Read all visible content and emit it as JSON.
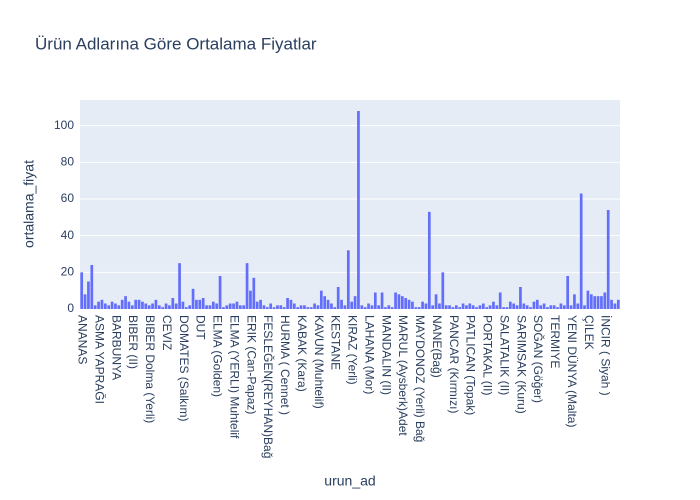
{
  "chart_data": {
    "type": "bar",
    "title": "Ürün Adlarına Göre Ortalama Fiyatlar",
    "x_label": "urun_ad",
    "y_label": "ortalama_fiyat",
    "color": "#636efa",
    "grid": true,
    "ylim": [
      0,
      114
    ],
    "yticks": [
      0,
      20,
      40,
      60,
      80,
      100
    ],
    "categories": [
      "ANANAS",
      null,
      null,
      null,
      null,
      "ASMA YAPRAĞI",
      null,
      null,
      null,
      null,
      "BARBUNYA",
      null,
      null,
      null,
      null,
      "BIBER (II)",
      null,
      null,
      null,
      null,
      "BIBER Dolma (Yerli)",
      null,
      null,
      null,
      null,
      "CEVIZ",
      null,
      null,
      null,
      null,
      "DOMATES (Salkım)",
      null,
      null,
      null,
      null,
      "DUT",
      null,
      null,
      null,
      null,
      "ELMA (Golden)",
      null,
      null,
      null,
      null,
      "ELMA (YERLI) Muhtelif",
      null,
      null,
      null,
      null,
      "ERIK (Can-Papaz)",
      null,
      null,
      null,
      null,
      "FESLEĞEN(REYHAN)Bağ",
      null,
      null,
      null,
      null,
      "HURMA ( Cennet )",
      null,
      null,
      null,
      null,
      "KABAK (Kara)",
      null,
      null,
      null,
      null,
      "KAVUN (Muhtelif)",
      null,
      null,
      null,
      null,
      "KESTANE",
      null,
      null,
      null,
      null,
      "KIRAZ (Yerli)",
      null,
      null,
      null,
      null,
      "LAHANA (Mor)",
      null,
      null,
      null,
      null,
      "MANDALIN (II)",
      null,
      null,
      null,
      null,
      "MARUL (Aysberk)Adet",
      null,
      null,
      null,
      null,
      "MAYDONOZ (Yerli) Bağ",
      null,
      null,
      null,
      null,
      "NANE(Bağ)",
      null,
      null,
      null,
      null,
      "PANCAR (Kırmızı)",
      null,
      null,
      null,
      null,
      "PATLICAN (Topak)",
      null,
      null,
      null,
      null,
      "PORTAKAL (II)",
      null,
      null,
      null,
      null,
      "SALATALIK (II)",
      null,
      null,
      null,
      null,
      "SARIMSAK (Kuru)",
      null,
      null,
      null,
      null,
      "SOĞAN (Göğer)",
      null,
      null,
      null,
      null,
      "TERMIYE",
      null,
      null,
      null,
      null,
      "YENI DÜNYA (Malta)",
      null,
      null,
      null,
      null,
      "ÇILEK",
      null,
      null,
      null,
      null,
      "İNCIR ( Siyah )",
      null,
      null,
      null,
      null
    ],
    "values": [
      20,
      8,
      15,
      24,
      2,
      4,
      5,
      3,
      2,
      4,
      3,
      2,
      5,
      7,
      4,
      2,
      5,
      5,
      4,
      3,
      2,
      3,
      5,
      2,
      1,
      3,
      2,
      6,
      3,
      25,
      4,
      1,
      2,
      11,
      5,
      5,
      6,
      2,
      2,
      4,
      3,
      18,
      1,
      2,
      3,
      3,
      4,
      2,
      2,
      25,
      10,
      17,
      4,
      5,
      2,
      1,
      3,
      1,
      2,
      2,
      1,
      6,
      5,
      3,
      1,
      2,
      2,
      1,
      1,
      3,
      2,
      10,
      7,
      5,
      3,
      1,
      12,
      5,
      2,
      32,
      4,
      7,
      108,
      2,
      1,
      3,
      2,
      9,
      2,
      9,
      1,
      2,
      1,
      9,
      8,
      7,
      6,
      5,
      4,
      1,
      1,
      4,
      3,
      53,
      2,
      8,
      3,
      20,
      2,
      2,
      1,
      2,
      1,
      3,
      2,
      3,
      2,
      1,
      2,
      3,
      1,
      2,
      4,
      2,
      9,
      1,
      1,
      4,
      3,
      2,
      12,
      3,
      2,
      1,
      4,
      5,
      2,
      3,
      1,
      2,
      2,
      1,
      3,
      2,
      18,
      2,
      8,
      3,
      63,
      2,
      10,
      8,
      7,
      7,
      7,
      9,
      54,
      5,
      3,
      5
    ]
  }
}
